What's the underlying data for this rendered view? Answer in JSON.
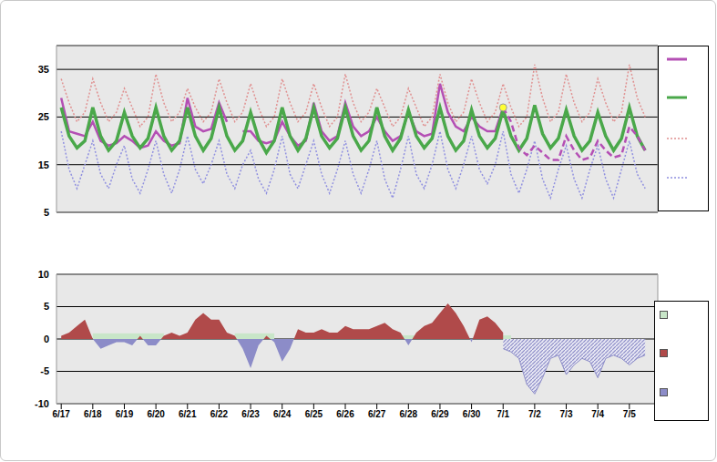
{
  "chart_data": [
    {
      "type": "line",
      "grid": true,
      "legend": "right",
      "x": [
        0,
        0.25,
        0.5,
        0.75,
        1,
        1.25,
        1.5,
        1.75,
        2,
        2.25,
        2.5,
        2.75,
        3,
        3.25,
        3.5,
        3.75,
        4,
        4.25,
        4.5,
        4.75,
        5,
        5.25,
        5.5,
        5.75,
        6,
        6.25,
        6.5,
        6.75,
        7,
        7.25,
        7.5,
        7.75,
        8,
        8.25,
        8.5,
        8.75,
        9,
        9.25,
        9.5,
        9.75,
        10,
        10.25,
        10.5,
        10.75,
        11,
        11.25,
        11.5,
        11.75,
        12,
        12.25,
        12.5,
        12.75,
        13,
        13.25,
        13.5,
        13.75,
        14,
        14.25,
        14.5,
        14.75,
        15,
        15.25,
        15.5,
        15.75,
        16,
        16.25,
        16.5,
        16.75,
        17,
        17.25,
        17.5,
        17.75,
        18,
        18.25,
        18.5
      ],
      "xlim": [
        -0.15,
        18.9
      ],
      "xticks": [
        {
          "value": 0,
          "label": "6/17"
        },
        {
          "value": 1,
          "label": "6/18"
        },
        {
          "value": 2,
          "label": "6/19"
        },
        {
          "value": 3,
          "label": "6/20"
        },
        {
          "value": 4,
          "label": "6/21"
        },
        {
          "value": 5,
          "label": "6/22"
        },
        {
          "value": 6,
          "label": "6/23"
        },
        {
          "value": 7,
          "label": "6/24"
        },
        {
          "value": 8,
          "label": "6/25"
        },
        {
          "value": 9,
          "label": "6/26"
        },
        {
          "value": 10,
          "label": "6/27"
        },
        {
          "value": 11,
          "label": "6/28"
        },
        {
          "value": 12,
          "label": "6/29"
        },
        {
          "value": 13,
          "label": "6/30"
        },
        {
          "value": 14,
          "label": "7/1"
        },
        {
          "value": 15,
          "label": "7/2"
        },
        {
          "value": 16,
          "label": "7/3"
        },
        {
          "value": 17,
          "label": "7/4"
        },
        {
          "value": 18,
          "label": "7/5"
        }
      ],
      "ylim": [
        5,
        40
      ],
      "yticks": [
        5,
        15,
        25,
        35
      ],
      "series": [
        {
          "color": "#b44fb4",
          "line_style": "solid",
          "values": [
            29,
            22,
            21.5,
            21,
            24,
            20,
            19,
            19.5,
            21,
            20,
            18.5,
            19,
            22,
            20,
            19,
            19.5,
            29,
            23,
            22,
            22.5,
            28,
            24,
            null,
            22,
            22,
            20,
            19.5,
            20,
            24,
            21,
            19,
            20,
            28,
            22,
            20,
            21,
            28,
            23,
            21,
            22,
            25,
            22,
            20,
            21,
            26,
            22,
            21,
            21.5,
            32,
            26,
            23,
            22,
            25,
            23,
            22,
            22,
            27,
            null,
            null,
            null,
            null,
            null,
            null,
            null,
            null,
            null,
            null,
            null,
            null,
            null,
            null,
            null,
            null,
            null,
            null
          ]
        },
        {
          "color": "#4aa84a",
          "line_style": "solid",
          "values": [
            27,
            21,
            18.5,
            20,
            27,
            21,
            18,
            20,
            26,
            21,
            18.5,
            20.5,
            27,
            21,
            18,
            20,
            27,
            21,
            18,
            20.5,
            27,
            21,
            18,
            20,
            26,
            20.5,
            17.5,
            20,
            27,
            21,
            18,
            20.5,
            27,
            21,
            18.5,
            20.5,
            27,
            21,
            18,
            20,
            27,
            21,
            18,
            20.5,
            26.5,
            21,
            18.5,
            20.5,
            27,
            21,
            18,
            20,
            26.5,
            21,
            18.5,
            20.5,
            26.5,
            21,
            18,
            20.5,
            27.5,
            21.5,
            18.5,
            20.5,
            26.5,
            21,
            18,
            20,
            26,
            21,
            18,
            20.5,
            27,
            21,
            18
          ]
        },
        {
          "color": "#e09090",
          "line_style": "dotted",
          "values": [
            33,
            28,
            24,
            26,
            33,
            28,
            24,
            26,
            31,
            27,
            23,
            25,
            34,
            28,
            24,
            26,
            31,
            27,
            24,
            26,
            33,
            28,
            24,
            26,
            32,
            27,
            23,
            25,
            33,
            28,
            24,
            26,
            32,
            27,
            23,
            25,
            34,
            28,
            24,
            26,
            31,
            27,
            23,
            25,
            31,
            27,
            23,
            25,
            34,
            28,
            24,
            26,
            33,
            28,
            24,
            26,
            32,
            27,
            23,
            25,
            36,
            29,
            24,
            26,
            34,
            28,
            24,
            26,
            33,
            28,
            24,
            26,
            36,
            29,
            25
          ]
        },
        {
          "color": "#9090e0",
          "line_style": "dotted",
          "values": [
            22,
            14,
            10,
            15,
            20,
            13,
            10,
            15,
            19,
            12,
            9,
            14,
            20,
            13,
            9,
            14,
            21,
            14,
            11,
            15,
            20,
            13,
            10,
            15,
            18,
            12,
            9,
            14,
            21,
            13,
            10,
            15,
            20,
            13,
            9,
            14,
            20,
            13,
            9,
            14,
            20,
            12,
            8,
            14,
            21,
            13,
            10,
            15,
            22,
            14,
            10,
            15,
            21,
            14,
            11,
            15,
            22,
            13,
            9,
            14,
            20,
            12,
            8,
            14,
            19,
            12,
            8,
            14,
            19,
            12,
            8,
            14,
            20,
            13,
            10
          ]
        },
        {
          "color": "#b44fb4",
          "line_style": "dashed",
          "values": [
            null,
            null,
            null,
            null,
            null,
            null,
            null,
            null,
            null,
            null,
            null,
            null,
            null,
            null,
            null,
            null,
            null,
            null,
            null,
            null,
            null,
            null,
            null,
            null,
            null,
            null,
            null,
            null,
            null,
            null,
            null,
            null,
            null,
            null,
            null,
            null,
            null,
            null,
            null,
            null,
            null,
            null,
            null,
            null,
            null,
            null,
            null,
            null,
            null,
            null,
            null,
            null,
            null,
            null,
            null,
            null,
            27,
            24,
            18.5,
            17,
            19,
            17.5,
            16,
            16,
            21,
            18,
            16,
            16.5,
            20,
            18,
            16.5,
            17,
            23,
            21,
            18
          ]
        },
        {
          "type": "scatter",
          "marker": "circle",
          "color": "#ffff33",
          "values": [
            null,
            null,
            null,
            null,
            null,
            null,
            null,
            null,
            null,
            null,
            null,
            null,
            null,
            null,
            null,
            null,
            null,
            null,
            null,
            null,
            null,
            null,
            null,
            null,
            null,
            null,
            null,
            null,
            null,
            null,
            null,
            null,
            null,
            null,
            null,
            null,
            null,
            null,
            null,
            null,
            null,
            null,
            null,
            null,
            null,
            null,
            null,
            null,
            null,
            null,
            null,
            null,
            null,
            null,
            null,
            null,
            27,
            null,
            null,
            null,
            null,
            null,
            null,
            null,
            null,
            null,
            null,
            null,
            null,
            null,
            null,
            null,
            null,
            null,
            null
          ]
        }
      ]
    },
    {
      "type": "area",
      "grid": true,
      "legend": "right",
      "x": [
        0,
        0.25,
        0.5,
        0.75,
        1,
        1.25,
        1.5,
        1.75,
        2,
        2.25,
        2.5,
        2.75,
        3,
        3.25,
        3.5,
        3.75,
        4,
        4.25,
        4.5,
        4.75,
        5,
        5.25,
        5.5,
        5.75,
        6,
        6.25,
        6.5,
        6.75,
        7,
        7.25,
        7.5,
        7.75,
        8,
        8.25,
        8.5,
        8.75,
        9,
        9.25,
        9.5,
        9.75,
        10,
        10.25,
        10.5,
        10.75,
        11,
        11.25,
        11.5,
        11.75,
        12,
        12.25,
        12.5,
        12.75,
        13,
        13.25,
        13.5,
        13.75,
        14,
        14.25,
        14.5,
        14.75,
        15,
        15.25,
        15.5,
        15.75,
        16,
        16.25,
        16.5,
        16.75,
        17,
        17.25,
        17.5,
        17.75,
        18,
        18.25,
        18.5
      ],
      "xlim": [
        -0.15,
        18.9
      ],
      "xticks": [
        {
          "value": 0,
          "label": "6/17"
        },
        {
          "value": 1,
          "label": "6/18"
        },
        {
          "value": 2,
          "label": "6/19"
        },
        {
          "value": 3,
          "label": "6/20"
        },
        {
          "value": 4,
          "label": "6/21"
        },
        {
          "value": 5,
          "label": "6/22"
        },
        {
          "value": 6,
          "label": "6/23"
        },
        {
          "value": 7,
          "label": "6/24"
        },
        {
          "value": 8,
          "label": "6/25"
        },
        {
          "value": 9,
          "label": "6/26"
        },
        {
          "value": 10,
          "label": "6/27"
        },
        {
          "value": 11,
          "label": "6/28"
        },
        {
          "value": 12,
          "label": "6/29"
        },
        {
          "value": 13,
          "label": "6/30"
        },
        {
          "value": 14,
          "label": "7/1"
        },
        {
          "value": 15,
          "label": "7/2"
        },
        {
          "value": 16,
          "label": "7/3"
        },
        {
          "value": 17,
          "label": "7/4"
        },
        {
          "value": 18,
          "label": "7/5"
        }
      ],
      "ylim": [
        -10,
        10
      ],
      "yticks": [
        -10,
        -5,
        0,
        5,
        10
      ],
      "series": [
        {
          "color": "#c8e6c8",
          "line_style": "solid",
          "values": [
            null,
            null,
            null,
            null,
            0.8,
            0.8,
            0.8,
            0.8,
            0.8,
            0.8,
            0.8,
            0.8,
            0.8,
            0.8,
            null,
            null,
            null,
            null,
            null,
            null,
            null,
            null,
            0.8,
            0.8,
            0.8,
            0.8,
            0.8,
            0.8,
            null,
            null,
            null,
            null,
            null,
            null,
            null,
            null,
            null,
            null,
            null,
            null,
            null,
            null,
            null,
            0.5,
            0.5,
            0.5,
            null,
            null,
            null,
            null,
            null,
            null,
            null,
            null,
            null,
            0.5,
            0.5,
            0.5,
            null,
            null,
            null,
            null,
            null,
            null,
            null,
            null,
            null,
            null,
            null,
            null,
            null,
            null,
            null,
            null,
            null
          ]
        },
        {
          "colors": [
            "#b04a4a",
            "#8c8cc8"
          ],
          "line_style": "solid",
          "values": [
            0.5,
            1,
            2,
            3,
            0,
            -1.5,
            -1,
            -0.5,
            -0.5,
            -1,
            0.5,
            -1,
            -1,
            0.5,
            1,
            0.5,
            1,
            3,
            4,
            3,
            3,
            1,
            0.5,
            -1.5,
            -4.5,
            -1,
            0.5,
            -0.5,
            -3.5,
            -1.5,
            1.5,
            1,
            1,
            1.5,
            1,
            1,
            2,
            1.5,
            1.5,
            1.5,
            2,
            2.5,
            1.5,
            1,
            -1,
            1,
            2,
            2.5,
            4,
            5.5,
            4,
            2,
            -0.5,
            3,
            3.5,
            2.5,
            1,
            null,
            null,
            null,
            null,
            null,
            null,
            null,
            null,
            null,
            null,
            null,
            null,
            null,
            null,
            null,
            null,
            null,
            null
          ]
        },
        {
          "color": "#8c8cc8",
          "line_style": "hatched",
          "values": [
            null,
            null,
            null,
            null,
            null,
            null,
            null,
            null,
            null,
            null,
            null,
            null,
            null,
            null,
            null,
            null,
            null,
            null,
            null,
            null,
            null,
            null,
            null,
            null,
            null,
            null,
            null,
            null,
            null,
            null,
            null,
            null,
            null,
            null,
            null,
            null,
            null,
            null,
            null,
            null,
            null,
            null,
            null,
            null,
            null,
            null,
            null,
            null,
            null,
            null,
            null,
            null,
            null,
            null,
            null,
            null,
            -1.5,
            -2,
            -3,
            -7,
            -8.5,
            -6,
            -3,
            -2.5,
            -5.5,
            -4,
            -3,
            -3.5,
            -6,
            -3,
            -2.5,
            -3,
            -4,
            -3,
            -2.5
          ]
        }
      ]
    }
  ]
}
